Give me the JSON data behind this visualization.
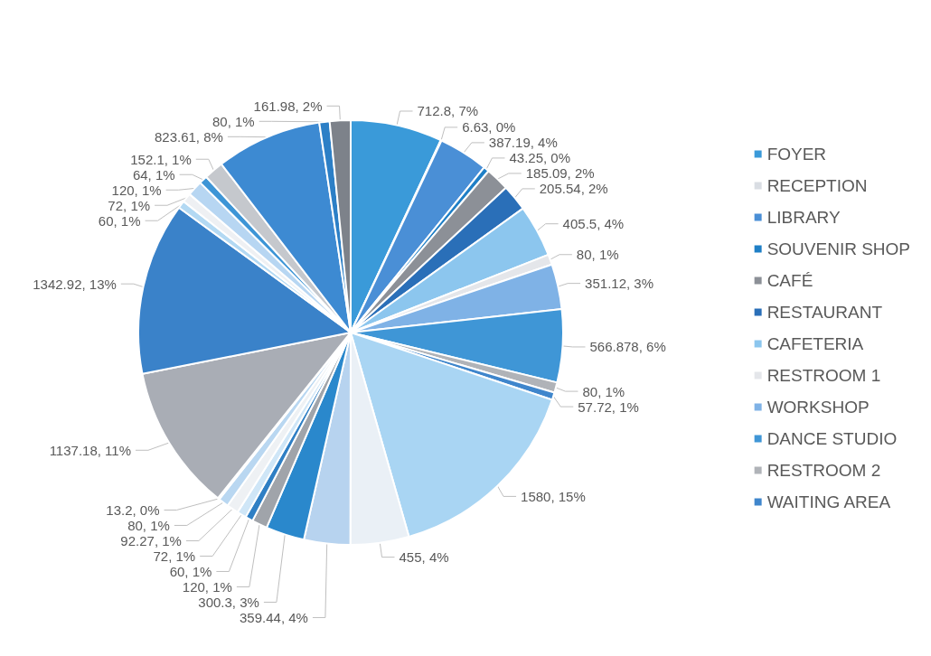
{
  "chart_data": {
    "type": "pie",
    "legend": "right",
    "categories": [
      "FOYER",
      "RECEPTION",
      "LIBRARY",
      "SOUVENIR SHOP",
      "CAFÉ",
      "RESTAURANT",
      "CAFETERIA",
      "RESTROOM 1",
      "WORKSHOP",
      "DANCE STUDIO",
      "RESTROOM 2",
      "WAITING AREA",
      null,
      null,
      null,
      null,
      null,
      null,
      null,
      null,
      null,
      null,
      null,
      null,
      null,
      null,
      null,
      null,
      null,
      null,
      null,
      null
    ],
    "values": [
      712.8,
      6.63,
      387.19,
      43.25,
      185.09,
      205.54,
      405.5,
      80,
      351.12,
      566.878,
      80,
      57.72,
      1580,
      455,
      359.44,
      300.3,
      120,
      60,
      72,
      92.27,
      80,
      13.2,
      1137.18,
      1342.92,
      60,
      72,
      120,
      64,
      152.1,
      823.61,
      80,
      161.98
    ],
    "value_labels": [
      "712.8, 7%",
      "6.63, 0%",
      "387.19, 4%",
      "43.25, 0%",
      "185.09, 2%",
      "205.54, 2%",
      "405.5, 4%",
      "80, 1%",
      "351.12, 3%",
      "566.878, 6%",
      "80, 1%",
      "57.72, 1%",
      "1580, 15%",
      "455, 4%",
      "359.44, 4%",
      "300.3, 3%",
      "120, 1%",
      "60, 1%",
      "72, 1%",
      "92.27, 1%",
      "80, 1%",
      "13.2, 0%",
      "1137.18, 11%",
      "1342.92, 13%",
      "60, 1%",
      "72, 1%",
      "120, 1%",
      "64, 1%",
      "152.1, 1%",
      "823.61, 8%",
      "80, 1%",
      "161.98, 2%"
    ],
    "colors": [
      "#3a9ad9",
      "#d9dde3",
      "#4a8fd6",
      "#1f7fc6",
      "#8c9097",
      "#2a6fb8",
      "#8cc6ee",
      "#e4e6ea",
      "#7fb2e6",
      "#3f96d6",
      "#b0b3b8",
      "#3f86cc",
      "#a9d5f3",
      "#eaf0f6",
      "#b7d3ef",
      "#2a88cc",
      "#a0a4aa",
      "#2f7fc4",
      "#cfe6f7",
      "#eef1f4",
      "#b9d7f1",
      "#a4cdef",
      "#a9adb5",
      "#3a82c9",
      "#b3d9f3",
      "#eef0f3",
      "#b7d6f2",
      "#3d95d6",
      "#c5c8cd",
      "#3d8ad2",
      "#2c7fc6",
      "#7d828a"
    ]
  }
}
